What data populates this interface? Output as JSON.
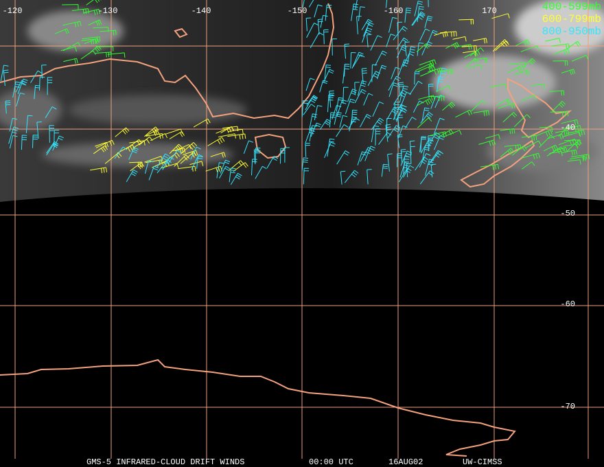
{
  "longitude_labels": [
    "-120",
    "-130",
    "-140",
    "-150",
    "-160",
    "170"
  ],
  "latitude_labels": [
    "-40",
    "-50",
    "-60",
    "-70"
  ],
  "legend": [
    {
      "label": "400-599mb",
      "color": "#33ff33"
    },
    {
      "label": "600-799mb",
      "color": "#ffff33"
    },
    {
      "label": "800-950mb",
      "color": "#33e6ff"
    }
  ],
  "footer": [
    "GMS-5 INFRARED-CLOUD DRIFT WINDS",
    "00:00 UTC",
    "16AUG02",
    "UW-CIMSS"
  ]
}
